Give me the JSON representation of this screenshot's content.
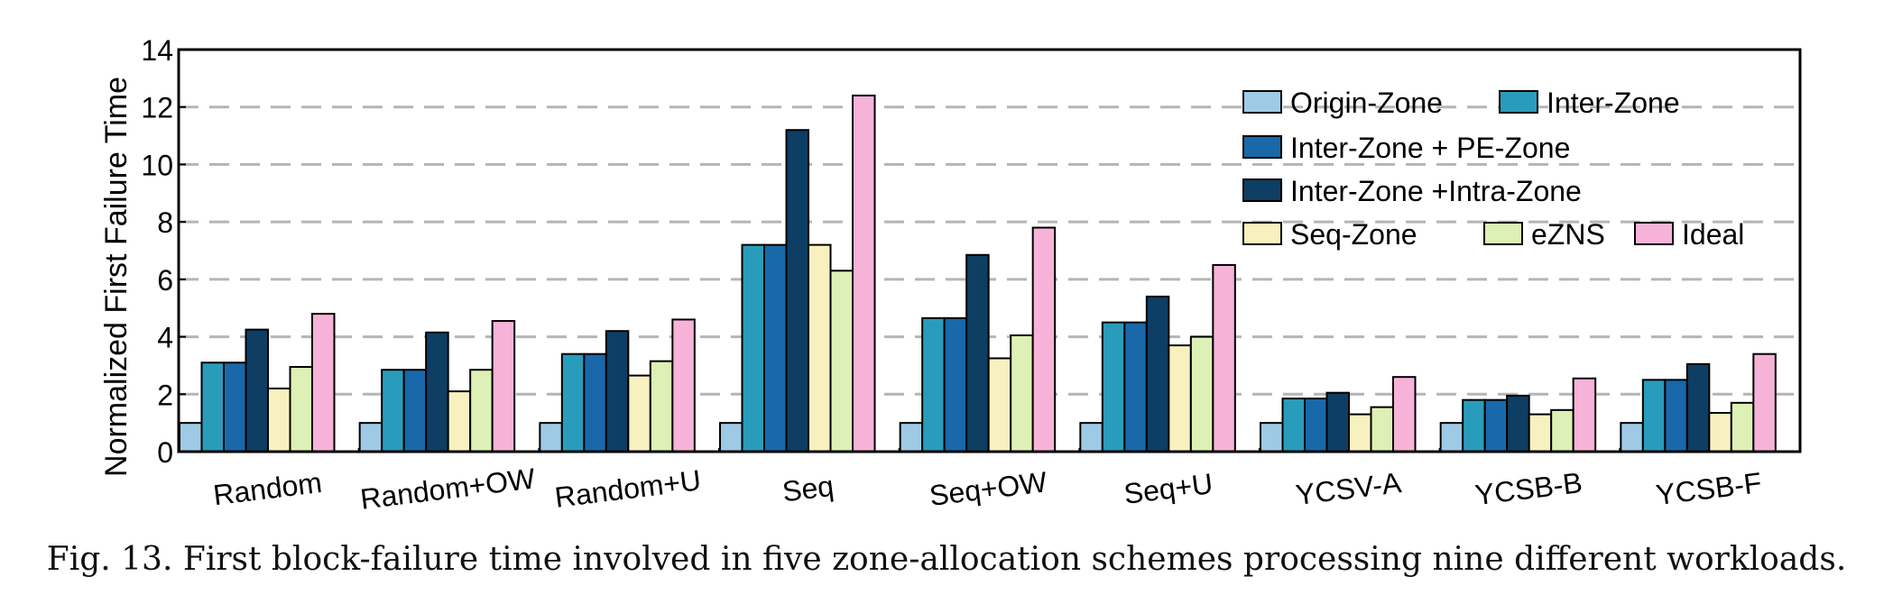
{
  "chart_data": {
    "type": "bar",
    "ylabel": "Normalized First Failure Time",
    "ylim": [
      0,
      14
    ],
    "yticks": [
      0,
      2,
      4,
      6,
      8,
      10,
      12,
      14
    ],
    "grid": "horizontal-dashed",
    "legend_position": "top-right",
    "categories": [
      "Random",
      "Random+OW",
      "Random+U",
      "Seq",
      "Seq+OW",
      "Seq+U",
      "YCSV-A",
      "YCSB-B",
      "YCSB-F"
    ],
    "series": [
      {
        "name": "Origin-Zone",
        "color": "#9fcae6",
        "values": [
          1,
          1,
          1,
          1,
          1,
          1,
          1,
          1,
          1
        ]
      },
      {
        "name": "Inter-Zone",
        "color": "#2a9cbb",
        "values": [
          3.1,
          2.85,
          3.4,
          7.2,
          4.65,
          4.5,
          1.85,
          1.8,
          2.5
        ]
      },
      {
        "name": "Inter-Zone + PE-Zone",
        "color": "#1868aa",
        "values": [
          3.1,
          2.85,
          3.4,
          7.2,
          4.65,
          4.5,
          1.85,
          1.8,
          2.5
        ]
      },
      {
        "name": "Inter-Zone +Intra-Zone",
        "color": "#0e3e63",
        "values": [
          4.25,
          4.15,
          4.2,
          11.2,
          6.85,
          5.4,
          2.05,
          1.95,
          3.05
        ]
      },
      {
        "name": "Seq-Zone",
        "color": "#f8f1bf",
        "values": [
          2.2,
          2.1,
          2.65,
          7.2,
          3.25,
          3.7,
          1.3,
          1.3,
          1.35
        ]
      },
      {
        "name": "eZNS",
        "color": "#ddf0b5",
        "values": [
          2.95,
          2.85,
          3.15,
          6.3,
          4.05,
          4.0,
          1.55,
          1.45,
          1.7
        ]
      },
      {
        "name": "Ideal",
        "color": "#f7b3d7",
        "values": [
          4.8,
          4.55,
          4.6,
          12.4,
          7.8,
          6.5,
          2.6,
          2.55,
          3.4
        ]
      }
    ]
  },
  "caption": "Fig. 13.  First block-failure time involved in five zone-allocation schemes processing nine different workloads."
}
